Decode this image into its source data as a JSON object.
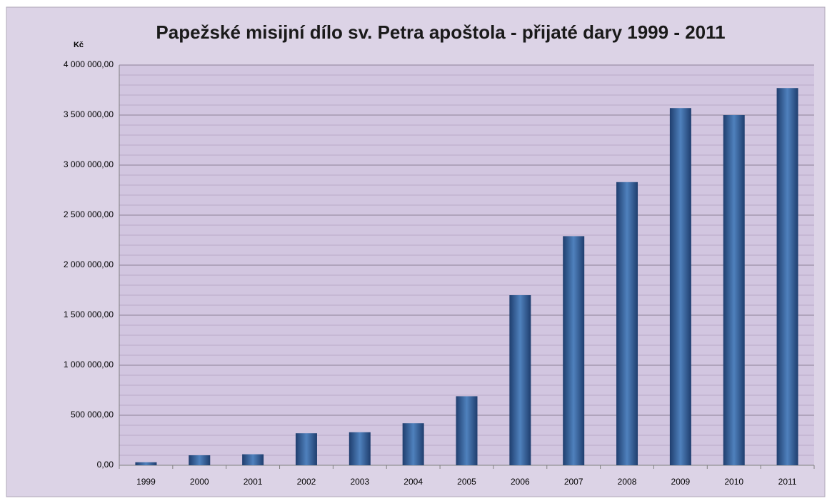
{
  "chart_data": {
    "type": "bar",
    "title": "Papežské misijní dílo sv. Petra apoštola - přijaté dary 1999 - 2011",
    "ylabel": "Kč",
    "categories": [
      "1999",
      "2000",
      "2001",
      "2002",
      "2003",
      "2004",
      "2005",
      "2006",
      "2007",
      "2008",
      "2009",
      "2010",
      "2011"
    ],
    "values": [
      30000,
      100000,
      110000,
      320000,
      330000,
      420000,
      690000,
      1700000,
      2290000,
      2830000,
      3570000,
      3500000,
      3770000
    ],
    "color": "#4f81bd",
    "ylim": [
      0,
      4000000
    ],
    "yticks": [
      {
        "value": 0,
        "label": "0,00"
      },
      {
        "value": 500000,
        "label": "500 000,00"
      },
      {
        "value": 1000000,
        "label": "1 000 000,00"
      },
      {
        "value": 1500000,
        "label": "1 500 000,00"
      },
      {
        "value": 2000000,
        "label": "2 000 000,00"
      },
      {
        "value": 2500000,
        "label": "2 500 000,00"
      },
      {
        "value": 3000000,
        "label": "3 000 000,00"
      },
      {
        "value": 3500000,
        "label": "3 500 000,00"
      },
      {
        "value": 4000000,
        "label": "4 000 000,00"
      }
    ],
    "minor_yticks": [
      100000,
      200000,
      300000,
      400000,
      600000,
      700000,
      800000,
      900000,
      1100000,
      1200000,
      1300000,
      1400000,
      1600000,
      1700000,
      1800000,
      1900000,
      2100000,
      2200000,
      2300000,
      2400000,
      2600000,
      2700000,
      2800000,
      2900000,
      3100000,
      3200000,
      3300000,
      3400000,
      3600000,
      3700000,
      3800000,
      3900000
    ],
    "grid": true
  }
}
